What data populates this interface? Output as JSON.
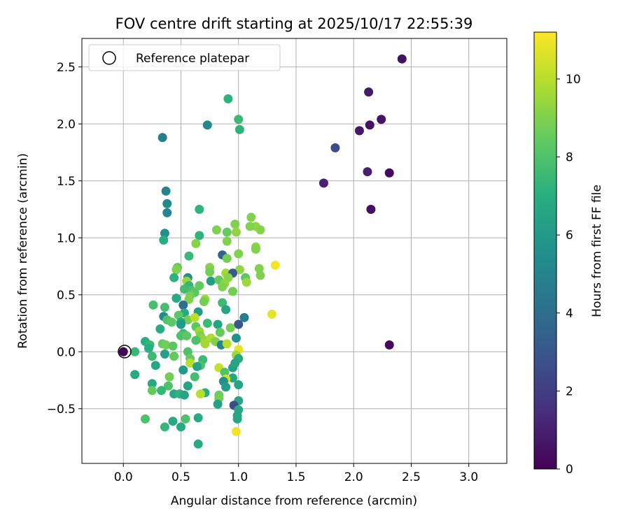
{
  "chart_data": {
    "type": "scatter",
    "title": "FOV centre drift starting at 2025/10/17 22:55:39",
    "xlabel": "Angular distance from reference (arcmin)",
    "ylabel": "Rotation from reference (arcmin)",
    "xlim": [
      -0.36,
      3.33
    ],
    "ylim": [
      -0.98,
      2.75
    ],
    "xticks": [
      "0.0",
      "0.5",
      "1.0",
      "1.5",
      "2.0",
      "2.5",
      "3.0"
    ],
    "yticks": [
      "−0.5",
      "0.0",
      "0.5",
      "1.0",
      "1.5",
      "2.0",
      "2.5"
    ],
    "xtick_values": [
      0,
      0.5,
      1.0,
      1.5,
      2.0,
      2.5,
      3.0
    ],
    "ytick_values": [
      -0.5,
      0,
      0.5,
      1.0,
      1.5,
      2.0,
      2.5
    ],
    "grid": true,
    "legend": {
      "position": "top-left",
      "label": "Reference platepar",
      "marker": "open-circle"
    },
    "colorbar": {
      "label": "Hours from first FF file",
      "colormap": "viridis",
      "range": [
        0,
        11.2
      ],
      "ticks": [
        "0",
        "2",
        "4",
        "6",
        "8",
        "10"
      ],
      "tick_values": [
        0,
        2,
        4,
        6,
        8,
        10
      ]
    },
    "reference_point": {
      "x": 0.0,
      "y": 0.0
    },
    "points": [
      {
        "x": 0.0,
        "y": 0.0,
        "h": 0.1
      },
      {
        "x": 2.42,
        "y": 2.57,
        "h": 0.5
      },
      {
        "x": 2.13,
        "y": 2.28,
        "h": 0.8
      },
      {
        "x": 2.24,
        "y": 2.04,
        "h": 0.6
      },
      {
        "x": 2.14,
        "y": 1.99,
        "h": 0.5
      },
      {
        "x": 2.05,
        "y": 1.94,
        "h": 0.7
      },
      {
        "x": 1.84,
        "y": 1.79,
        "h": 2.6
      },
      {
        "x": 2.12,
        "y": 1.58,
        "h": 1.0
      },
      {
        "x": 2.31,
        "y": 1.57,
        "h": 0.3
      },
      {
        "x": 1.74,
        "y": 1.48,
        "h": 1.0
      },
      {
        "x": 2.15,
        "y": 1.25,
        "h": 0.4
      },
      {
        "x": 2.31,
        "y": 0.06,
        "h": 0.3
      },
      {
        "x": 0.34,
        "y": 1.88,
        "h": 4.8
      },
      {
        "x": 0.73,
        "y": 1.99,
        "h": 5.2
      },
      {
        "x": 0.91,
        "y": 2.22,
        "h": 7.2
      },
      {
        "x": 1.0,
        "y": 2.04,
        "h": 7.5
      },
      {
        "x": 1.01,
        "y": 1.95,
        "h": 7.2
      },
      {
        "x": 0.37,
        "y": 1.41,
        "h": 5.0
      },
      {
        "x": 0.38,
        "y": 1.3,
        "h": 5.3
      },
      {
        "x": 0.38,
        "y": 1.22,
        "h": 5.1
      },
      {
        "x": 0.66,
        "y": 1.25,
        "h": 7.2
      },
      {
        "x": 0.36,
        "y": 1.04,
        "h": 5.5
      },
      {
        "x": 0.35,
        "y": 0.98,
        "h": 7.0
      },
      {
        "x": 0.66,
        "y": 1.02,
        "h": 7.2
      },
      {
        "x": 1.11,
        "y": 1.18,
        "h": 9.0
      },
      {
        "x": 0.97,
        "y": 1.12,
        "h": 9.0
      },
      {
        "x": 1.15,
        "y": 1.1,
        "h": 9.3
      },
      {
        "x": 1.1,
        "y": 1.1,
        "h": 9.0
      },
      {
        "x": 1.19,
        "y": 1.07,
        "h": 9.1
      },
      {
        "x": 0.81,
        "y": 1.07,
        "h": 9.0
      },
      {
        "x": 0.9,
        "y": 1.05,
        "h": 8.5
      },
      {
        "x": 0.98,
        "y": 1.05,
        "h": 9.3
      },
      {
        "x": 0.9,
        "y": 0.97,
        "h": 9.0
      },
      {
        "x": 0.63,
        "y": 0.95,
        "h": 9.1
      },
      {
        "x": 1.15,
        "y": 0.92,
        "h": 9.3
      },
      {
        "x": 1.15,
        "y": 0.9,
        "h": 9.0
      },
      {
        "x": 0.57,
        "y": 0.84,
        "h": 7.5
      },
      {
        "x": 0.86,
        "y": 0.85,
        "h": 3.5
      },
      {
        "x": 1.0,
        "y": 0.86,
        "h": 9.0
      },
      {
        "x": 0.9,
        "y": 0.82,
        "h": 8.8
      },
      {
        "x": 0.47,
        "y": 0.74,
        "h": 8.5
      },
      {
        "x": 0.46,
        "y": 0.72,
        "h": 9.0
      },
      {
        "x": 0.75,
        "y": 0.74,
        "h": 9.1
      },
      {
        "x": 0.75,
        "y": 0.7,
        "h": 8.8
      },
      {
        "x": 1.18,
        "y": 0.73,
        "h": 9.0
      },
      {
        "x": 1.01,
        "y": 0.72,
        "h": 9.3
      },
      {
        "x": 1.32,
        "y": 0.76,
        "h": 11.0
      },
      {
        "x": 0.56,
        "y": 0.65,
        "h": 5.5
      },
      {
        "x": 0.44,
        "y": 0.65,
        "h": 7.2
      },
      {
        "x": 0.89,
        "y": 0.69,
        "h": 9.6
      },
      {
        "x": 0.95,
        "y": 0.69,
        "h": 3.2
      },
      {
        "x": 1.06,
        "y": 0.65,
        "h": 8.3
      },
      {
        "x": 0.91,
        "y": 0.65,
        "h": 9.2
      },
      {
        "x": 1.19,
        "y": 0.67,
        "h": 9.0
      },
      {
        "x": 0.55,
        "y": 0.62,
        "h": 9.3
      },
      {
        "x": 0.76,
        "y": 0.62,
        "h": 6.2
      },
      {
        "x": 0.83,
        "y": 0.63,
        "h": 8.5
      },
      {
        "x": 0.88,
        "y": 0.6,
        "h": 9.3
      },
      {
        "x": 1.07,
        "y": 0.61,
        "h": 9.5
      },
      {
        "x": 0.66,
        "y": 0.58,
        "h": 8.5
      },
      {
        "x": 0.57,
        "y": 0.58,
        "h": 7.3
      },
      {
        "x": 0.59,
        "y": 0.54,
        "h": 8.0
      },
      {
        "x": 0.86,
        "y": 0.57,
        "h": 9.0
      },
      {
        "x": 0.53,
        "y": 0.55,
        "h": 7.7
      },
      {
        "x": 0.95,
        "y": 0.53,
        "h": 8.8
      },
      {
        "x": 0.62,
        "y": 0.52,
        "h": 8.3
      },
      {
        "x": 0.58,
        "y": 0.49,
        "h": 8.8
      },
      {
        "x": 0.57,
        "y": 0.46,
        "h": 9.0
      },
      {
        "x": 0.46,
        "y": 0.47,
        "h": 6.8
      },
      {
        "x": 0.71,
        "y": 0.46,
        "h": 9.5
      },
      {
        "x": 0.7,
        "y": 0.44,
        "h": 8.8
      },
      {
        "x": 0.86,
        "y": 0.43,
        "h": 7.6
      },
      {
        "x": 0.52,
        "y": 0.41,
        "h": 4.0
      },
      {
        "x": 0.26,
        "y": 0.41,
        "h": 7.8
      },
      {
        "x": 0.36,
        "y": 0.39,
        "h": 7.8
      },
      {
        "x": 0.89,
        "y": 0.37,
        "h": 6.5
      },
      {
        "x": 0.53,
        "y": 0.34,
        "h": 6.8
      },
      {
        "x": 0.65,
        "y": 0.35,
        "h": 6.0
      },
      {
        "x": 0.48,
        "y": 0.32,
        "h": 8.3
      },
      {
        "x": 1.05,
        "y": 0.3,
        "h": 4.8
      },
      {
        "x": 1.29,
        "y": 0.33,
        "h": 10.8
      },
      {
        "x": 0.35,
        "y": 0.31,
        "h": 5.3
      },
      {
        "x": 0.38,
        "y": 0.28,
        "h": 8.0
      },
      {
        "x": 0.42,
        "y": 0.26,
        "h": 8.3
      },
      {
        "x": 0.56,
        "y": 0.28,
        "h": 8.8
      },
      {
        "x": 0.62,
        "y": 0.3,
        "h": 10.0
      },
      {
        "x": 0.5,
        "y": 0.26,
        "h": 6.8
      },
      {
        "x": 0.63,
        "y": 0.22,
        "h": 8.3
      },
      {
        "x": 0.73,
        "y": 0.25,
        "h": 7.5
      },
      {
        "x": 0.82,
        "y": 0.24,
        "h": 6.5
      },
      {
        "x": 0.5,
        "y": 0.24,
        "h": 6.0
      },
      {
        "x": 1.0,
        "y": 0.24,
        "h": 3.0
      },
      {
        "x": 0.32,
        "y": 0.2,
        "h": 7.0
      },
      {
        "x": 0.93,
        "y": 0.21,
        "h": 8.8
      },
      {
        "x": 0.52,
        "y": 0.16,
        "h": 7.6
      },
      {
        "x": 0.84,
        "y": 0.17,
        "h": 8.5
      },
      {
        "x": 0.66,
        "y": 0.18,
        "h": 9.5
      },
      {
        "x": 0.5,
        "y": 0.14,
        "h": 8.0
      },
      {
        "x": 0.55,
        "y": 0.14,
        "h": 8.3
      },
      {
        "x": 0.98,
        "y": 0.12,
        "h": 5.6
      },
      {
        "x": 0.67,
        "y": 0.14,
        "h": 9.0
      },
      {
        "x": 0.69,
        "y": 0.11,
        "h": 9.3
      },
      {
        "x": 0.76,
        "y": 0.12,
        "h": 9.8
      },
      {
        "x": 0.71,
        "y": 0.07,
        "h": 9.6
      },
      {
        "x": 0.63,
        "y": 0.1,
        "h": 8.0
      },
      {
        "x": 0.8,
        "y": 0.09,
        "h": 9.0
      },
      {
        "x": 0.19,
        "y": 0.09,
        "h": 7.0
      },
      {
        "x": 0.23,
        "y": 0.06,
        "h": 7.5
      },
      {
        "x": 0.22,
        "y": 0.03,
        "h": 7.0
      },
      {
        "x": 0.34,
        "y": 0.07,
        "h": 8.5
      },
      {
        "x": 0.37,
        "y": 0.06,
        "h": 8.8
      },
      {
        "x": 0.43,
        "y": 0.05,
        "h": 8.3
      },
      {
        "x": 0.85,
        "y": 0.06,
        "h": 5.0
      },
      {
        "x": 0.9,
        "y": 0.07,
        "h": 10.0
      },
      {
        "x": 1.0,
        "y": 0.02,
        "h": 10.8
      },
      {
        "x": 0.56,
        "y": 0.0,
        "h": 8.0
      },
      {
        "x": 0.36,
        "y": -0.02,
        "h": 6.3
      },
      {
        "x": 0.1,
        "y": 0.0,
        "h": 7.4
      },
      {
        "x": 0.25,
        "y": -0.04,
        "h": 7.6
      },
      {
        "x": 0.44,
        "y": -0.04,
        "h": 8.5
      },
      {
        "x": 0.98,
        "y": -0.03,
        "h": 9.5
      },
      {
        "x": 1.0,
        "y": -0.06,
        "h": 6.8
      },
      {
        "x": 0.58,
        "y": -0.06,
        "h": 8.5
      },
      {
        "x": 0.69,
        "y": -0.07,
        "h": 7.5
      },
      {
        "x": 0.58,
        "y": -0.1,
        "h": 10.0
      },
      {
        "x": 0.28,
        "y": -0.12,
        "h": 6.7
      },
      {
        "x": 0.67,
        "y": -0.12,
        "h": 8.0
      },
      {
        "x": 0.64,
        "y": -0.13,
        "h": 6.5
      },
      {
        "x": 0.52,
        "y": -0.16,
        "h": 6.0
      },
      {
        "x": 0.83,
        "y": -0.14,
        "h": 10.2
      },
      {
        "x": 0.95,
        "y": -0.14,
        "h": 6.3
      },
      {
        "x": 0.88,
        "y": -0.18,
        "h": 8.0
      },
      {
        "x": 0.97,
        "y": -0.1,
        "h": 6.5
      },
      {
        "x": 0.1,
        "y": -0.2,
        "h": 6.8
      },
      {
        "x": 0.62,
        "y": -0.22,
        "h": 7.8
      },
      {
        "x": 0.4,
        "y": -0.22,
        "h": 8.8
      },
      {
        "x": 0.95,
        "y": -0.23,
        "h": 6.6
      },
      {
        "x": 0.89,
        "y": -0.24,
        "h": 10.4
      },
      {
        "x": 0.87,
        "y": -0.26,
        "h": 5.5
      },
      {
        "x": 0.25,
        "y": -0.28,
        "h": 6.7
      },
      {
        "x": 0.39,
        "y": -0.3,
        "h": 8.0
      },
      {
        "x": 0.56,
        "y": -0.3,
        "h": 6.5
      },
      {
        "x": 0.89,
        "y": -0.31,
        "h": 6.2
      },
      {
        "x": 1.0,
        "y": -0.29,
        "h": 6.5
      },
      {
        "x": 0.25,
        "y": -0.34,
        "h": 8.5
      },
      {
        "x": 0.33,
        "y": -0.34,
        "h": 7.4
      },
      {
        "x": 0.44,
        "y": -0.37,
        "h": 6.7
      },
      {
        "x": 0.49,
        "y": -0.37,
        "h": 7.2
      },
      {
        "x": 0.53,
        "y": -0.38,
        "h": 6.5
      },
      {
        "x": 0.71,
        "y": -0.36,
        "h": 7.0
      },
      {
        "x": 0.67,
        "y": -0.37,
        "h": 10.0
      },
      {
        "x": 0.83,
        "y": -0.38,
        "h": 8.6
      },
      {
        "x": 0.83,
        "y": -0.41,
        "h": 8.8
      },
      {
        "x": 1.0,
        "y": -0.43,
        "h": 6.5
      },
      {
        "x": 0.82,
        "y": -0.46,
        "h": 6.4
      },
      {
        "x": 0.96,
        "y": -0.47,
        "h": 2.6
      },
      {
        "x": 1.0,
        "y": -0.51,
        "h": 6.7
      },
      {
        "x": 0.99,
        "y": -0.56,
        "h": 6.5
      },
      {
        "x": 0.99,
        "y": -0.59,
        "h": 6.6
      },
      {
        "x": 0.19,
        "y": -0.59,
        "h": 8.0
      },
      {
        "x": 0.43,
        "y": -0.61,
        "h": 6.8
      },
      {
        "x": 0.54,
        "y": -0.59,
        "h": 8.0
      },
      {
        "x": 0.65,
        "y": -0.58,
        "h": 6.8
      },
      {
        "x": 0.36,
        "y": -0.66,
        "h": 7.4
      },
      {
        "x": 0.5,
        "y": -0.66,
        "h": 6.8
      },
      {
        "x": 0.98,
        "y": -0.7,
        "h": 11.0
      },
      {
        "x": 0.65,
        "y": -0.81,
        "h": 6.8
      }
    ]
  }
}
